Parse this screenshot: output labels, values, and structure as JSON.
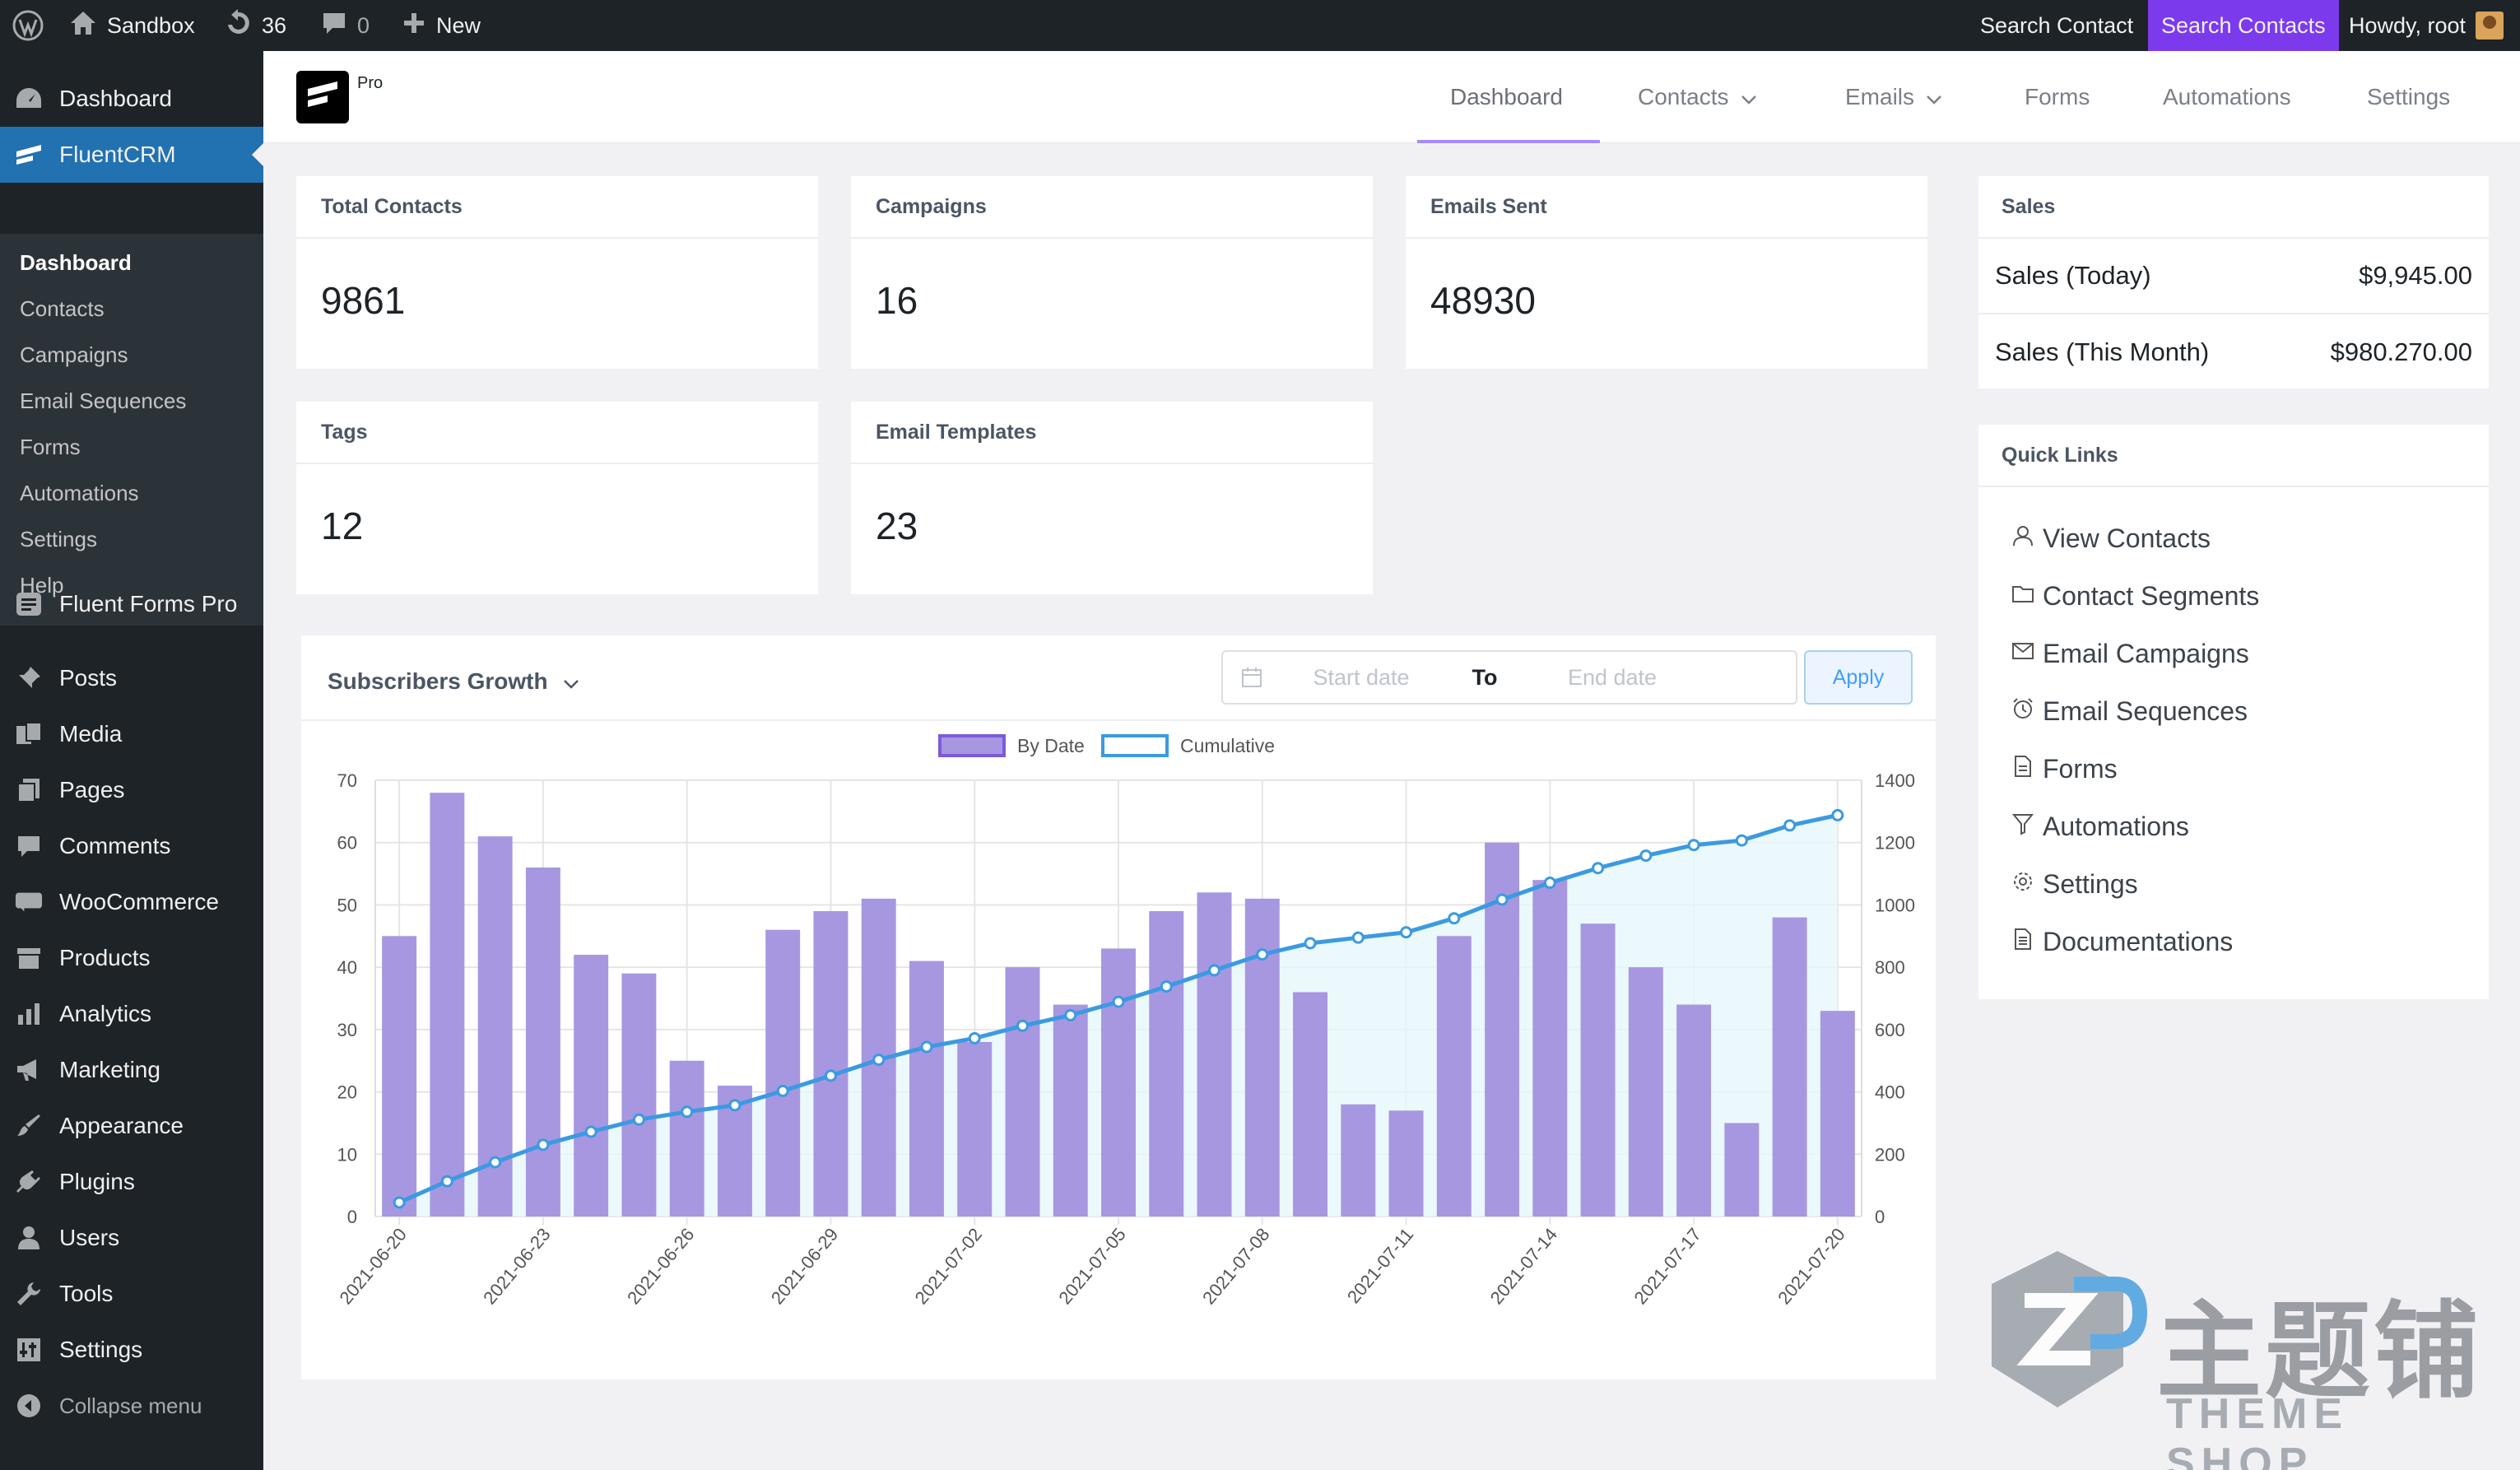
{
  "admin_bar": {
    "site_name": "Sandbox",
    "updates_count": "36",
    "comments_count": "0",
    "new_label": "New",
    "search_contact_label": "Search Contact",
    "search_contacts_button": "Search Contacts",
    "howdy": "Howdy, root"
  },
  "sidebar": {
    "dashboard": "Dashboard",
    "fluentcrm": "FluentCRM",
    "submenu": [
      "Dashboard",
      "Contacts",
      "Campaigns",
      "Email Sequences",
      "Forms",
      "Automations",
      "Settings",
      "Help"
    ],
    "items": [
      "Fluent Forms Pro",
      "Posts",
      "Media",
      "Pages",
      "Comments",
      "WooCommerce",
      "Products",
      "Analytics",
      "Marketing",
      "Appearance",
      "Plugins",
      "Users",
      "Tools",
      "Settings"
    ],
    "collapse": "Collapse menu"
  },
  "topnav": {
    "logo_badge": "Pro",
    "tabs": [
      "Dashboard",
      "Contacts",
      "Emails",
      "Forms",
      "Automations",
      "Settings"
    ]
  },
  "stats": {
    "total_contacts": {
      "label": "Total Contacts",
      "value": "9861"
    },
    "campaigns": {
      "label": "Campaigns",
      "value": "16"
    },
    "emails_sent": {
      "label": "Emails Sent",
      "value": "48930"
    },
    "tags": {
      "label": "Tags",
      "value": "12"
    },
    "email_templates": {
      "label": "Email Templates",
      "value": "23"
    }
  },
  "sales": {
    "title": "Sales",
    "today_label": "Sales (Today)",
    "today_value": "$9,945.00",
    "month_label": "Sales (This Month)",
    "month_value": "$980.270.00"
  },
  "quick_links": {
    "title": "Quick Links",
    "items": [
      "View Contacts",
      "Contact Segments",
      "Email Campaigns",
      "Email Sequences",
      "Forms",
      "Automations",
      "Settings",
      "Documentations"
    ]
  },
  "growth": {
    "title": "Subscribers Growth",
    "start_placeholder": "Start date",
    "to_label": "To",
    "end_placeholder": "End date",
    "apply_label": "Apply"
  },
  "watermark": {
    "cn": "主题铺",
    "en": "THEME SHOP"
  },
  "colors": {
    "wp_dark": "#1d2327",
    "wp_blue": "#2271b1",
    "accent_purple": "#7c3aed",
    "bar_fill": "#a797e0",
    "line": "#3b9ae1"
  },
  "chart_data": {
    "type": "bar",
    "x": [
      "2021-06-20",
      "2021-06-21",
      "2021-06-22",
      "2021-06-23",
      "2021-06-24",
      "2021-06-25",
      "2021-06-26",
      "2021-06-27",
      "2021-06-28",
      "2021-06-29",
      "2021-06-30",
      "2021-07-01",
      "2021-07-02",
      "2021-07-03",
      "2021-07-04",
      "2021-07-05",
      "2021-07-06",
      "2021-07-07",
      "2021-07-08",
      "2021-07-09",
      "2021-07-10",
      "2021-07-11",
      "2021-07-12",
      "2021-07-13",
      "2021-07-14",
      "2021-07-15",
      "2021-07-16",
      "2021-07-17",
      "2021-07-18",
      "2021-07-19",
      "2021-07-20"
    ],
    "x_tick_labels": [
      "2021-06-20",
      "2021-06-23",
      "2021-06-26",
      "2021-06-29",
      "2021-07-02",
      "2021-07-05",
      "2021-07-08",
      "2021-07-11",
      "2021-07-14",
      "2021-07-17",
      "2021-07-20"
    ],
    "series": [
      {
        "name": "By Date",
        "type": "bar",
        "axis": "left",
        "values": [
          45,
          68,
          61,
          56,
          42,
          39,
          25,
          21,
          46,
          49,
          51,
          41,
          28,
          40,
          34,
          43,
          49,
          52,
          51,
          36,
          18,
          17,
          45,
          60,
          54,
          47,
          40,
          34,
          15,
          48,
          33
        ]
      },
      {
        "name": "Cumulative",
        "type": "line",
        "axis": "right",
        "values": [
          45,
          113,
          174,
          230,
          272,
          311,
          336,
          357,
          403,
          452,
          503,
          544,
          572,
          612,
          646,
          689,
          738,
          790,
          841,
          877,
          895,
          912,
          957,
          1017,
          1071,
          1118,
          1158,
          1192,
          1207,
          1255,
          1288
        ]
      }
    ],
    "y_left": {
      "lim": [
        0,
        70
      ],
      "ticks": [
        0,
        10,
        20,
        30,
        40,
        50,
        60,
        70
      ]
    },
    "y_right": {
      "lim": [
        0,
        1400
      ],
      "ticks": [
        0,
        200,
        400,
        600,
        800,
        1000,
        1200,
        1400
      ]
    },
    "legend_position": "top-center",
    "grid": true
  }
}
